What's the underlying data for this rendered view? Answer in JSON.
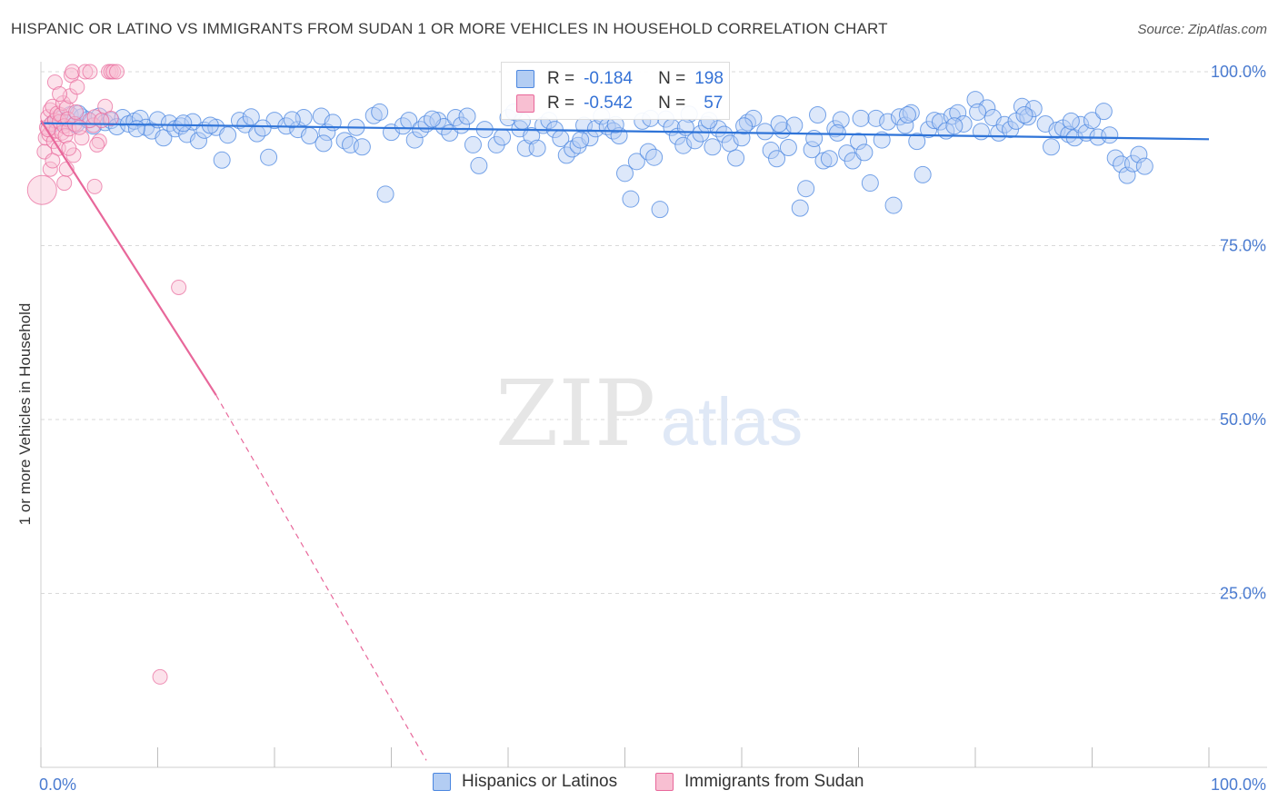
{
  "title": "HISPANIC OR LATINO VS IMMIGRANTS FROM SUDAN 1 OR MORE VEHICLES IN HOUSEHOLD CORRELATION CHART",
  "source": "Source: ZipAtlas.com",
  "watermark": {
    "zip": "ZIP",
    "atlas": "atlas"
  },
  "colors": {
    "blue": "#4a86e0",
    "blue_fill": "#b3cdf3",
    "pink": "#e8679a",
    "pink_fill": "#f8bfd2",
    "axis_text": "#4a7bd0",
    "grid": "#d9d9d9"
  },
  "legend": {
    "series1": {
      "r_label": "R =",
      "r_value": "-0.184",
      "n_label": "N =",
      "n_value": "198"
    },
    "series2": {
      "r_label": "R =",
      "r_value": "-0.542",
      "n_label": "N =",
      "n_value": "57"
    }
  },
  "bottom_legend": [
    "Hispanics or Latinos",
    "Immigrants from Sudan"
  ],
  "chart_data": {
    "type": "scatter",
    "title": "HISPANIC OR LATINO VS IMMIGRANTS FROM SUDAN 1 OR MORE VEHICLES IN HOUSEHOLD CORRELATION CHART",
    "xlabel": "",
    "ylabel": "1 or more Vehicles in Household",
    "xlim": [
      0,
      100
    ],
    "ylim": [
      0,
      100
    ],
    "x_tick_labels": [
      "0.0%",
      "100.0%"
    ],
    "y_ticks": [
      25,
      50,
      75,
      100
    ],
    "y_tick_labels": [
      "25.0%",
      "50.0%",
      "75.0%",
      "100.0%"
    ],
    "grid": true,
    "series": [
      {
        "name": "Hispanics or Latinos",
        "trend": {
          "x": [
            0,
            100
          ],
          "y": [
            92.6,
            90.3
          ]
        },
        "points": [
          [
            1,
            92.5
          ],
          [
            1.5,
            93.2
          ],
          [
            2,
            92.8
          ],
          [
            2.5,
            93.8
          ],
          [
            3,
            92.4
          ],
          [
            3.5,
            93.5
          ],
          [
            4,
            93.1
          ],
          [
            4.5,
            92.2
          ],
          [
            5,
            93.6
          ],
          [
            5.5,
            92.7
          ],
          [
            6,
            93.0
          ],
          [
            6.5,
            92.1
          ],
          [
            7,
            93.4
          ],
          [
            7.5,
            92.5
          ],
          [
            8,
            92.9
          ],
          [
            8.5,
            93.3
          ],
          [
            9,
            92.0
          ],
          [
            9.5,
            91.5
          ],
          [
            10,
            93.1
          ],
          [
            10.5,
            90.5
          ],
          [
            11,
            92.6
          ],
          [
            11.5,
            91.8
          ],
          [
            12,
            92.2
          ],
          [
            12.5,
            91.0
          ],
          [
            13,
            92.8
          ],
          [
            13.5,
            90.1
          ],
          [
            14,
            91.6
          ],
          [
            15,
            92.0
          ],
          [
            15.5,
            87.3
          ],
          [
            16,
            90.9
          ],
          [
            17,
            93.0
          ],
          [
            17.5,
            92.4
          ],
          [
            18,
            93.5
          ],
          [
            18.5,
            91.1
          ],
          [
            19.5,
            87.7
          ],
          [
            20,
            93.0
          ],
          [
            21,
            92.2
          ],
          [
            22,
            91.7
          ],
          [
            22.5,
            93.4
          ],
          [
            23,
            90.8
          ],
          [
            24,
            93.6
          ],
          [
            24.5,
            91.3
          ],
          [
            25,
            92.7
          ],
          [
            26,
            90.1
          ],
          [
            26.5,
            89.5
          ],
          [
            27,
            92.0
          ],
          [
            27.5,
            89.2
          ],
          [
            28.5,
            93.7
          ],
          [
            29,
            94.2
          ],
          [
            29.5,
            82.4
          ],
          [
            30,
            91.3
          ],
          [
            31,
            92.2
          ],
          [
            31.5,
            93.0
          ],
          [
            32,
            90.2
          ],
          [
            32.5,
            91.7
          ],
          [
            33,
            92.5
          ],
          [
            34,
            93.0
          ],
          [
            34.5,
            92.1
          ],
          [
            35,
            91.2
          ],
          [
            35.5,
            93.4
          ],
          [
            36,
            92.3
          ],
          [
            37,
            89.5
          ],
          [
            37.5,
            86.5
          ],
          [
            38,
            91.7
          ],
          [
            39,
            89.5
          ],
          [
            39.5,
            90.6
          ],
          [
            40,
            93.4
          ],
          [
            40.5,
            94.2
          ],
          [
            41,
            91.8
          ],
          [
            41.5,
            89.0
          ],
          [
            42,
            90.8
          ],
          [
            42.5,
            89.0
          ],
          [
            43,
            92.3
          ],
          [
            43.5,
            93.0
          ],
          [
            44,
            91.7
          ],
          [
            44.5,
            90.4
          ],
          [
            45,
            88.0
          ],
          [
            45.5,
            88.9
          ],
          [
            46,
            89.4
          ],
          [
            46.5,
            92.3
          ],
          [
            47,
            90.5
          ],
          [
            47.5,
            91.8
          ],
          [
            48,
            93.6
          ],
          [
            48.5,
            92.1
          ],
          [
            49,
            91.5
          ],
          [
            49.5,
            90.8
          ],
          [
            50,
            85.4
          ],
          [
            50.5,
            81.7
          ],
          [
            51,
            87.1
          ],
          [
            51.5,
            92.9
          ],
          [
            52,
            88.5
          ],
          [
            52.5,
            87.7
          ],
          [
            53,
            80.2
          ],
          [
            53.5,
            93.2
          ],
          [
            54,
            92.0
          ],
          [
            54.5,
            90.7
          ],
          [
            55,
            89.4
          ],
          [
            55.5,
            93.9
          ],
          [
            56,
            90.1
          ],
          [
            56.5,
            91.1
          ],
          [
            57,
            92.4
          ],
          [
            57.5,
            89.2
          ],
          [
            58,
            91.8
          ],
          [
            58.5,
            91.0
          ],
          [
            59,
            89.7
          ],
          [
            59.5,
            87.6
          ],
          [
            60,
            90.5
          ],
          [
            60.5,
            92.7
          ],
          [
            61,
            93.3
          ],
          [
            62,
            91.4
          ],
          [
            62.5,
            88.7
          ],
          [
            63,
            87.5
          ],
          [
            63.5,
            91.6
          ],
          [
            64,
            89.1
          ],
          [
            64.5,
            92.3
          ],
          [
            65,
            80.4
          ],
          [
            65.5,
            83.2
          ],
          [
            66,
            88.8
          ],
          [
            66.5,
            93.8
          ],
          [
            67,
            87.2
          ],
          [
            67.5,
            87.5
          ],
          [
            68,
            91.8
          ],
          [
            68.5,
            93.1
          ],
          [
            69,
            88.3
          ],
          [
            69.5,
            87.2
          ],
          [
            70,
            90.0
          ],
          [
            70.5,
            88.4
          ],
          [
            71,
            84.0
          ],
          [
            71.5,
            93.3
          ],
          [
            72,
            90.2
          ],
          [
            72.5,
            92.8
          ],
          [
            73,
            80.8
          ],
          [
            73.5,
            93.5
          ],
          [
            74,
            92.3
          ],
          [
            74.5,
            94.1
          ],
          [
            75,
            90.0
          ],
          [
            75.5,
            85.2
          ],
          [
            76,
            91.7
          ],
          [
            76.5,
            93.0
          ],
          [
            77,
            92.8
          ],
          [
            77.5,
            91.5
          ],
          [
            78,
            93.6
          ],
          [
            78.5,
            94.1
          ],
          [
            79,
            92.5
          ],
          [
            80,
            96.0
          ],
          [
            80.5,
            91.4
          ],
          [
            81,
            94.8
          ],
          [
            81.5,
            93.4
          ],
          [
            82,
            91.2
          ],
          [
            82.5,
            92.4
          ],
          [
            83,
            91.7
          ],
          [
            83.5,
            92.9
          ],
          [
            84,
            95.0
          ],
          [
            84.5,
            93.5
          ],
          [
            85,
            94.7
          ],
          [
            86,
            92.5
          ],
          [
            86.5,
            89.2
          ],
          [
            87,
            91.6
          ],
          [
            87.5,
            91.9
          ],
          [
            88,
            91.0
          ],
          [
            88.5,
            90.5
          ],
          [
            89,
            92.4
          ],
          [
            89.5,
            91.2
          ],
          [
            90,
            93.0
          ],
          [
            90.5,
            90.6
          ],
          [
            91,
            94.3
          ],
          [
            91.5,
            90.9
          ],
          [
            92,
            87.6
          ],
          [
            92.5,
            86.7
          ],
          [
            93,
            85.1
          ],
          [
            93.5,
            86.8
          ],
          [
            94,
            88.1
          ],
          [
            94.5,
            86.4
          ],
          [
            3.2,
            94.0
          ],
          [
            8.2,
            91.8
          ],
          [
            12.2,
            92.6
          ],
          [
            19,
            91.9
          ],
          [
            24.2,
            89.7
          ],
          [
            33.5,
            93.2
          ],
          [
            46.2,
            90.2
          ],
          [
            52.2,
            93.3
          ],
          [
            60.2,
            92.2
          ],
          [
            68.2,
            91.2
          ],
          [
            74.2,
            93.8
          ],
          [
            84.2,
            93.8
          ],
          [
            88.2,
            92.9
          ],
          [
            36.5,
            93.6
          ],
          [
            55.2,
            92.0
          ],
          [
            66.2,
            90.4
          ],
          [
            78.2,
            92.2
          ],
          [
            14.5,
            92.3
          ],
          [
            21.5,
            93.1
          ],
          [
            41.2,
            92.9
          ],
          [
            49.2,
            92.4
          ],
          [
            57.2,
            93.0
          ],
          [
            63.2,
            92.5
          ],
          [
            70.2,
            93.3
          ],
          [
            80.2,
            94.2
          ]
        ]
      },
      {
        "name": "Immigrants from Sudan",
        "trend": {
          "x": [
            0,
            15
          ],
          "y": [
            93.0,
            53.5
          ]
        },
        "trend_extended": {
          "x": [
            15,
            33
          ],
          "y": [
            53.5,
            1.0
          ]
        },
        "points": [
          [
            0.1,
            83.0
          ],
          [
            0.3,
            88.5
          ],
          [
            0.4,
            90.5
          ],
          [
            0.5,
            92.0
          ],
          [
            0.6,
            93.5
          ],
          [
            0.7,
            91.0
          ],
          [
            0.8,
            94.5
          ],
          [
            0.9,
            92.5
          ],
          [
            1.0,
            95.0
          ],
          [
            1.1,
            90.0
          ],
          [
            1.2,
            93.0
          ],
          [
            1.3,
            91.5
          ],
          [
            1.4,
            94.0
          ],
          [
            1.5,
            89.0
          ],
          [
            1.6,
            92.8
          ],
          [
            1.7,
            93.8
          ],
          [
            1.8,
            91.2
          ],
          [
            1.9,
            95.5
          ],
          [
            2.0,
            92.2
          ],
          [
            2.1,
            90.8
          ],
          [
            2.2,
            94.8
          ],
          [
            2.3,
            93.2
          ],
          [
            2.4,
            91.8
          ],
          [
            2.5,
            96.5
          ],
          [
            2.6,
            99.5
          ],
          [
            2.7,
            100.0
          ],
          [
            2.8,
            88.0
          ],
          [
            2.9,
            92.5
          ],
          [
            3.0,
            94.2
          ],
          [
            3.1,
            97.8
          ],
          [
            1.2,
            98.5
          ],
          [
            0.8,
            86.0
          ],
          [
            2.0,
            84.0
          ],
          [
            2.2,
            86.0
          ],
          [
            3.5,
            90.5
          ],
          [
            3.8,
            100.0
          ],
          [
            4.2,
            100.0
          ],
          [
            4.6,
            83.5
          ],
          [
            5.0,
            90.0
          ],
          [
            4.5,
            92.3
          ],
          [
            4.2,
            93.0
          ],
          [
            4.6,
            93.5
          ],
          [
            5.5,
            95.0
          ],
          [
            5.8,
            100.0
          ],
          [
            6.0,
            100.0
          ],
          [
            6.2,
            100.0
          ],
          [
            6.5,
            100.0
          ],
          [
            4.8,
            89.5
          ],
          [
            1.6,
            96.8
          ],
          [
            0.6,
            91.7
          ],
          [
            1.0,
            87.2
          ],
          [
            3.3,
            92.0
          ],
          [
            2.4,
            89.0
          ],
          [
            11.8,
            69.0
          ],
          [
            10.2,
            13.0
          ],
          [
            6.0,
            93.3
          ],
          [
            5.2,
            93.0
          ]
        ]
      }
    ]
  }
}
